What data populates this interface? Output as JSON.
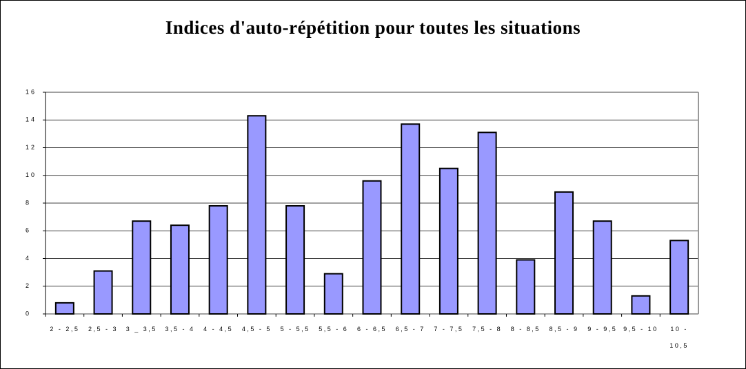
{
  "chart_data": {
    "type": "bar",
    "title": "Indices d'auto-répétition pour toutes les situations",
    "categories": [
      "2 - 2,5",
      "2,5 - 3",
      "3 _ 3,5",
      "3,5 - 4",
      "4 - 4,5",
      "4,5 - 5",
      "5 - 5,5",
      "5,5 - 6",
      "6 - 6,5",
      "6,5 - 7",
      "7 - 7,5",
      "7,5 - 8",
      "8 - 8,5",
      "8,5 - 9",
      "9 - 9,5",
      "9,5 - 10",
      "10 - 10,5"
    ],
    "values": [
      0.8,
      3.1,
      6.7,
      6.4,
      7.8,
      14.3,
      7.8,
      2.9,
      9.6,
      13.7,
      10.5,
      13.1,
      3.9,
      8.8,
      6.7,
      1.3,
      5.3
    ],
    "color": "#9999ff",
    "ylim": [
      0,
      16
    ],
    "yticks": [
      0,
      2,
      4,
      6,
      8,
      10,
      12,
      14,
      16
    ],
    "grid": true
  }
}
